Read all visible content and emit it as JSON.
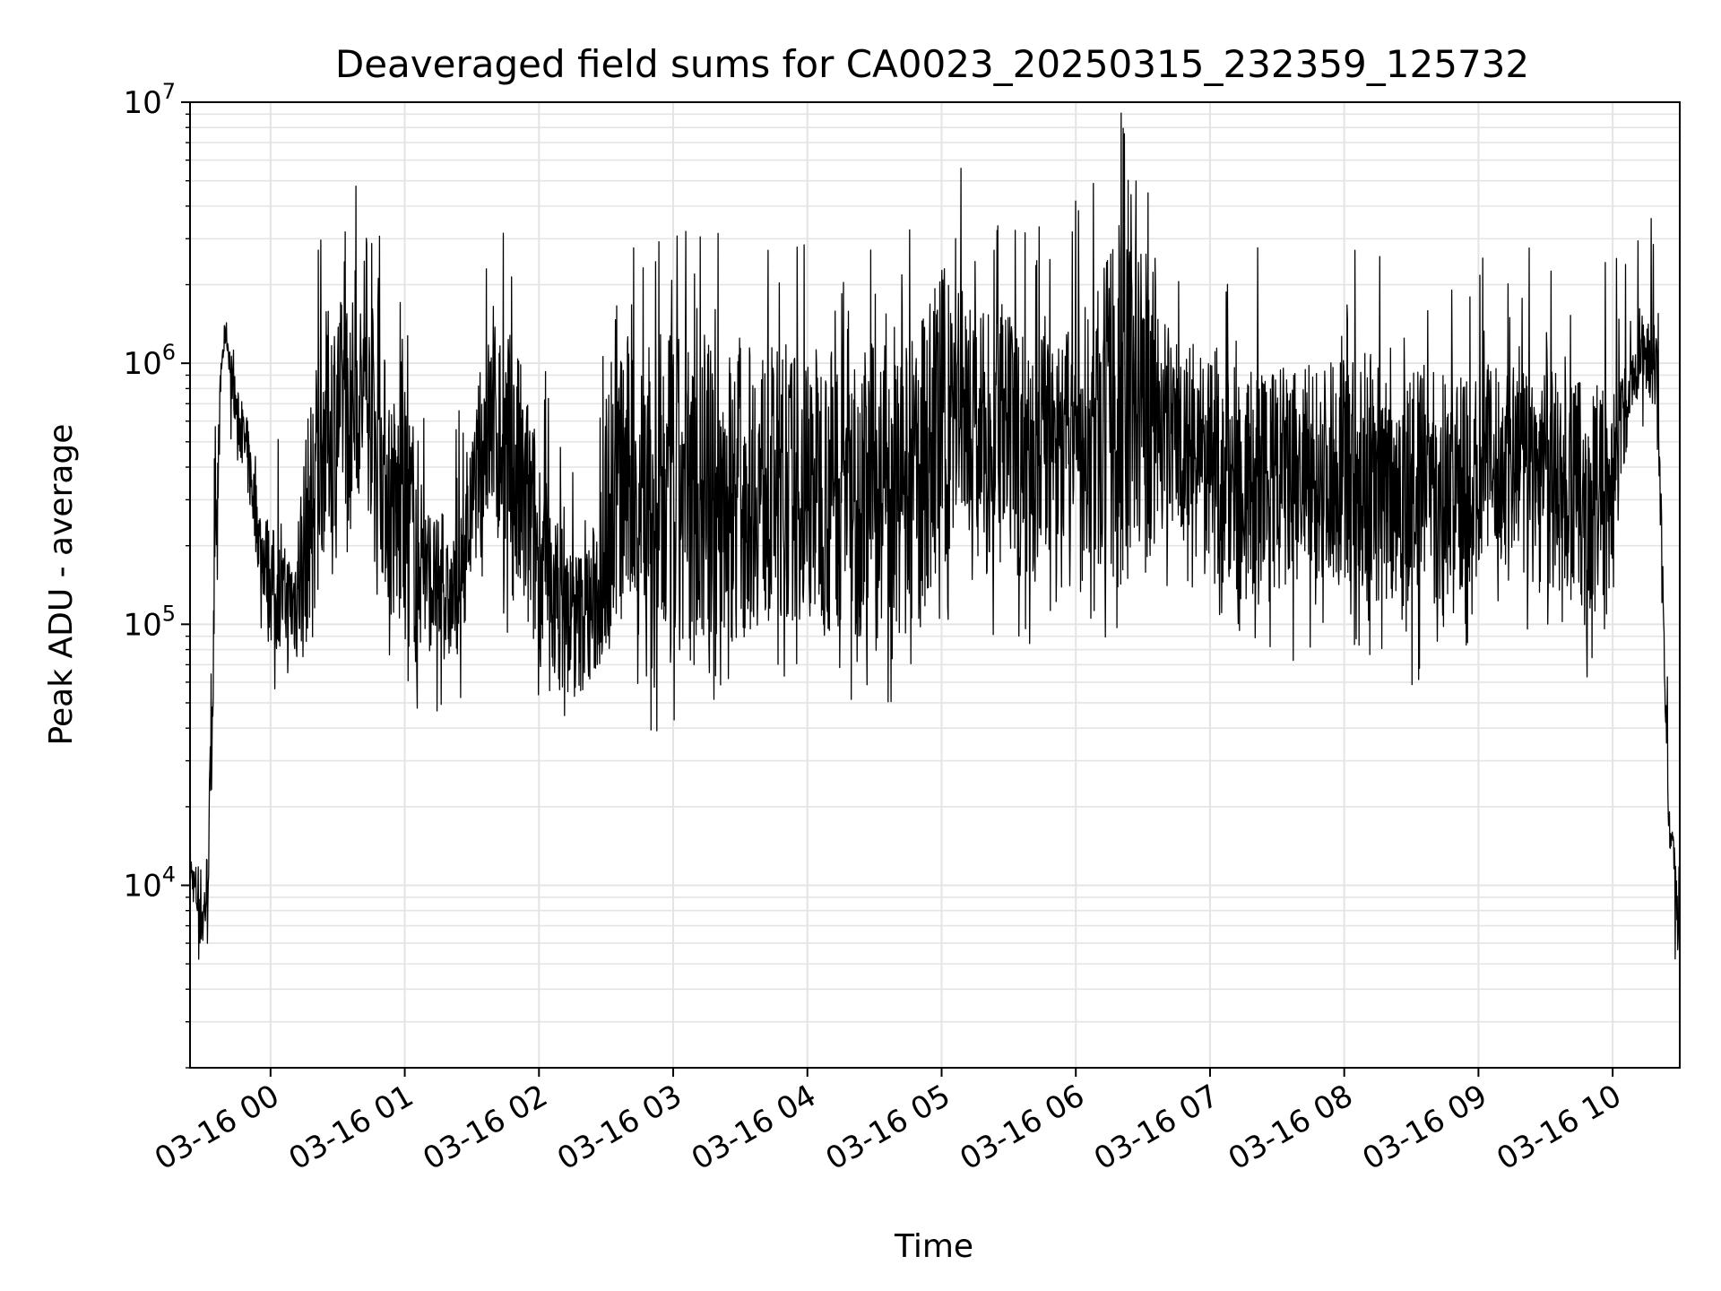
{
  "chart_data": {
    "type": "line",
    "title": "Deaveraged field sums for CA0023_20250315_232359_125732",
    "xlabel": "Time",
    "ylabel": "Peak ADU - average",
    "yscale": "log",
    "ylim": [
      2000,
      10000000
    ],
    "xlim": [
      "2025-03-15 23:24",
      "2025-03-16 10:30"
    ],
    "grid": true,
    "line_color": "#000000",
    "x_ticks": [
      {
        "value": "2025-03-16 00:00",
        "label": "03-16 00"
      },
      {
        "value": "2025-03-16 01:00",
        "label": "03-16 01"
      },
      {
        "value": "2025-03-16 02:00",
        "label": "03-16 02"
      },
      {
        "value": "2025-03-16 03:00",
        "label": "03-16 03"
      },
      {
        "value": "2025-03-16 04:00",
        "label": "03-16 04"
      },
      {
        "value": "2025-03-16 05:00",
        "label": "03-16 05"
      },
      {
        "value": "2025-03-16 06:00",
        "label": "03-16 06"
      },
      {
        "value": "2025-03-16 07:00",
        "label": "03-16 07"
      },
      {
        "value": "2025-03-16 08:00",
        "label": "03-16 08"
      },
      {
        "value": "2025-03-16 09:00",
        "label": "03-16 09"
      },
      {
        "value": "2025-03-16 10:00",
        "label": "03-16 10"
      }
    ],
    "y_ticks": [
      {
        "value": 10000,
        "base": "10",
        "exp": "4"
      },
      {
        "value": 100000,
        "base": "10",
        "exp": "5"
      },
      {
        "value": 1000000,
        "base": "10",
        "exp": "6"
      },
      {
        "value": 10000000,
        "base": "10",
        "exp": "7"
      }
    ],
    "series": [
      {
        "x": [
          "2025-03-15 23:24",
          "2025-03-15 23:26",
          "2025-03-15 23:28",
          "2025-03-15 23:30",
          "2025-03-15 23:32",
          "2025-03-15 23:34",
          "2025-03-15 23:36",
          "2025-03-15 23:38",
          "2025-03-15 23:40",
          "2025-03-15 23:45",
          "2025-03-15 23:50",
          "2025-03-15 23:55",
          "2025-03-16 00:00",
          "2025-03-16 00:05",
          "2025-03-16 00:10",
          "2025-03-16 00:15",
          "2025-03-16 00:20",
          "2025-03-16 00:25",
          "2025-03-16 00:30",
          "2025-03-16 00:35",
          "2025-03-16 00:40",
          "2025-03-16 00:45",
          "2025-03-16 00:50",
          "2025-03-16 00:55",
          "2025-03-16 01:00",
          "2025-03-16 01:05",
          "2025-03-16 01:10",
          "2025-03-16 01:15",
          "2025-03-16 01:20",
          "2025-03-16 01:25",
          "2025-03-16 01:30",
          "2025-03-16 01:35",
          "2025-03-16 01:40",
          "2025-03-16 01:45",
          "2025-03-16 01:50",
          "2025-03-16 01:55",
          "2025-03-16 02:00",
          "2025-03-16 02:05",
          "2025-03-16 02:10",
          "2025-03-16 02:15",
          "2025-03-16 02:20",
          "2025-03-16 02:25",
          "2025-03-16 02:30",
          "2025-03-16 02:35",
          "2025-03-16 02:40",
          "2025-03-16 02:45",
          "2025-03-16 02:50",
          "2025-03-16 02:55",
          "2025-03-16 03:00",
          "2025-03-16 03:10",
          "2025-03-16 03:20",
          "2025-03-16 03:30",
          "2025-03-16 03:40",
          "2025-03-16 03:50",
          "2025-03-16 04:00",
          "2025-03-16 04:10",
          "2025-03-16 04:20",
          "2025-03-16 04:30",
          "2025-03-16 04:40",
          "2025-03-16 04:50",
          "2025-03-16 05:00",
          "2025-03-16 05:10",
          "2025-03-16 05:20",
          "2025-03-16 05:30",
          "2025-03-16 05:40",
          "2025-03-16 05:50",
          "2025-03-16 06:00",
          "2025-03-16 06:10",
          "2025-03-16 06:20",
          "2025-03-16 06:30",
          "2025-03-16 06:40",
          "2025-03-16 06:50",
          "2025-03-16 07:00",
          "2025-03-16 07:10",
          "2025-03-16 07:20",
          "2025-03-16 07:30",
          "2025-03-16 07:40",
          "2025-03-16 07:50",
          "2025-03-16 08:00",
          "2025-03-16 08:10",
          "2025-03-16 08:20",
          "2025-03-16 08:30",
          "2025-03-16 08:40",
          "2025-03-16 08:50",
          "2025-03-16 09:00",
          "2025-03-16 09:10",
          "2025-03-16 09:20",
          "2025-03-16 09:30",
          "2025-03-16 09:40",
          "2025-03-16 09:50",
          "2025-03-16 10:00",
          "2025-03-16 10:05",
          "2025-03-16 10:10",
          "2025-03-16 10:15",
          "2025-03-16 10:20",
          "2025-03-16 10:25",
          "2025-03-16 10:27",
          "2025-03-16 10:28",
          "2025-03-16 10:29",
          "2025-03-16 10:30"
        ],
        "low": [
          10000,
          8000,
          6000,
          5000,
          8000,
          30000,
          200000,
          800000,
          1200000,
          500000,
          300000,
          150000,
          90000,
          80000,
          70000,
          70000,
          150000,
          200000,
          250000,
          300000,
          300000,
          250000,
          150000,
          90000,
          80000,
          80000,
          80000,
          75000,
          70000,
          80000,
          150000,
          250000,
          200000,
          150000,
          100000,
          80000,
          70000,
          60000,
          55000,
          50000,
          55000,
          60000,
          70000,
          90000,
          100000,
          90000,
          70000,
          60000,
          60000,
          70000,
          80000,
          90000,
          100000,
          100000,
          100000,
          100000,
          90000,
          90000,
          80000,
          100000,
          150000,
          250000,
          150000,
          150000,
          150000,
          200000,
          200000,
          150000,
          150000,
          150000,
          250000,
          200000,
          150000,
          120000,
          110000,
          120000,
          130000,
          150000,
          150000,
          120000,
          110000,
          100000,
          120000,
          130000,
          150000,
          150000,
          140000,
          130000,
          120000,
          110000,
          180000,
          400000,
          700000,
          800000,
          600000,
          15000,
          12000,
          9000,
          5000,
          11000
        ],
        "high": [
          14000,
          12000,
          13000,
          11000,
          15000,
          80000,
          400000,
          1200000,
          1500000,
          800000,
          600000,
          300000,
          250000,
          200000,
          200000,
          500000,
          1000000,
          1600000,
          1800000,
          1800000,
          1800000,
          1600000,
          1200000,
          800000,
          800000,
          600000,
          300000,
          250000,
          200000,
          250000,
          500000,
          1200000,
          1500000,
          1400000,
          1200000,
          800000,
          500000,
          300000,
          250000,
          200000,
          200000,
          250000,
          800000,
          1100000,
          1300000,
          1300000,
          1300000,
          1300000,
          1300000,
          1200000,
          1200000,
          1200000,
          1200000,
          1100000,
          1200000,
          1200000,
          1100000,
          1200000,
          1000000,
          1400000,
          2500000,
          2000000,
          1500000,
          1500000,
          1500000,
          1200000,
          1500000,
          2000000,
          3500000,
          3000000,
          1500000,
          1200000,
          1000000,
          1000000,
          1000000,
          1000000,
          1000000,
          1000000,
          1100000,
          1100000,
          1000000,
          1000000,
          1000000,
          900000,
          900000,
          1000000,
          1100000,
          1000000,
          900000,
          800000,
          900000,
          1000000,
          1200000,
          1500000,
          1500000,
          20000,
          16000,
          14000,
          10000,
          13000
        ]
      }
    ]
  }
}
